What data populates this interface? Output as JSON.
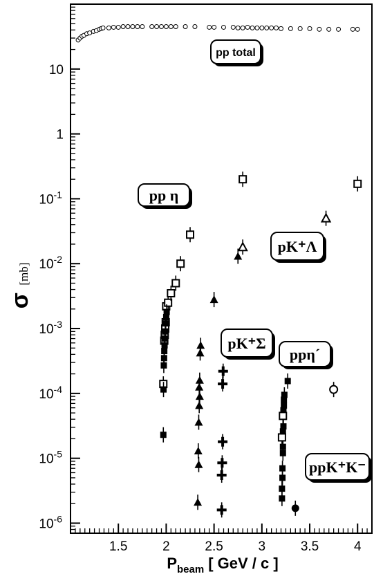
{
  "chart_data": {
    "type": "scatter",
    "xlabel": "P",
    "xlabel_sub": "beam",
    "xlabel_unit": "[ GeV / c ]",
    "ylabel": "σ",
    "ylabel_unit": "[mb]",
    "xlim": [
      1.0,
      4.15
    ],
    "ylim": [
      7e-07,
      100
    ],
    "yscale": "log",
    "x_ticks": [
      "1.5",
      "2",
      "2.5",
      "3",
      "3.5",
      "4"
    ],
    "y_ticks": [
      {
        "base": "10",
        "exp": "-6"
      },
      {
        "base": "10",
        "exp": "-5"
      },
      {
        "base": "10",
        "exp": "-4"
      },
      {
        "base": "10",
        "exp": "-3"
      },
      {
        "base": "10",
        "exp": "-2"
      },
      {
        "base": "10",
        "exp": "-1"
      },
      {
        "base": "1",
        "exp": ""
      },
      {
        "base": "10",
        "exp": ""
      }
    ],
    "series": [
      {
        "name": "pp total",
        "marker": "small-open-circle",
        "points": [
          [
            1.08,
            28
          ],
          [
            1.1,
            30
          ],
          [
            1.12,
            32
          ],
          [
            1.14,
            33
          ],
          [
            1.17,
            35
          ],
          [
            1.2,
            36
          ],
          [
            1.24,
            38
          ],
          [
            1.27,
            39
          ],
          [
            1.3,
            41
          ],
          [
            1.32,
            42
          ],
          [
            1.34,
            43
          ],
          [
            1.4,
            43
          ],
          [
            1.45,
            44
          ],
          [
            1.5,
            44
          ],
          [
            1.55,
            45
          ],
          [
            1.6,
            45
          ],
          [
            1.65,
            45
          ],
          [
            1.7,
            45
          ],
          [
            1.75,
            45
          ],
          [
            1.85,
            45
          ],
          [
            1.9,
            45
          ],
          [
            1.95,
            45
          ],
          [
            2.0,
            45
          ],
          [
            2.05,
            45
          ],
          [
            2.1,
            45
          ],
          [
            2.2,
            45
          ],
          [
            2.3,
            45
          ],
          [
            2.45,
            44
          ],
          [
            2.5,
            44
          ],
          [
            2.6,
            44
          ],
          [
            2.7,
            44
          ],
          [
            2.75,
            43
          ],
          [
            2.8,
            43
          ],
          [
            2.85,
            44
          ],
          [
            2.9,
            43
          ],
          [
            2.95,
            43
          ],
          [
            3.0,
            43
          ],
          [
            3.05,
            43
          ],
          [
            3.1,
            43
          ],
          [
            3.15,
            43
          ],
          [
            3.2,
            42
          ],
          [
            3.3,
            42
          ],
          [
            3.4,
            42
          ],
          [
            3.5,
            42
          ],
          [
            3.6,
            41
          ],
          [
            3.7,
            41
          ],
          [
            3.8,
            41
          ],
          [
            3.95,
            41
          ],
          [
            4.0,
            41
          ]
        ]
      },
      {
        "name": "pp η",
        "marker": "open-square",
        "points": [
          [
            1.97,
            0.00014
          ],
          [
            1.98,
            0.00065
          ],
          [
            1.985,
            0.0008
          ],
          [
            1.99,
            0.001
          ],
          [
            1.995,
            0.00125
          ],
          [
            2.0,
            0.0022
          ],
          [
            2.02,
            0.0025
          ],
          [
            2.05,
            0.0035
          ],
          [
            2.1,
            0.005
          ],
          [
            2.15,
            0.01
          ],
          [
            2.25,
            0.028
          ],
          [
            2.8,
            0.2
          ],
          [
            4.0,
            0.17
          ]
        ]
      },
      {
        "name": "pK⁺Λ",
        "marker": "open-triangle",
        "points": [
          [
            2.8,
            0.018
          ],
          [
            3.67,
            0.05
          ]
        ]
      },
      {
        "name": "pK⁺Λ",
        "marker": "filled-triangle",
        "points": [
          [
            2.5,
            0.0028
          ],
          [
            2.75,
            0.013
          ]
        ]
      },
      {
        "name": "pK⁺Σ",
        "marker": "filled-triangle",
        "points": [
          [
            2.33,
            2.1e-06
          ],
          [
            2.34,
            8e-06
          ],
          [
            2.335,
            1.3e-05
          ],
          [
            2.34,
            3.6e-05
          ],
          [
            2.345,
            6.5e-05
          ],
          [
            2.35,
            9e-05
          ],
          [
            2.345,
            0.000125
          ],
          [
            2.35,
            0.00016
          ],
          [
            2.355,
            0.00042
          ],
          [
            2.36,
            0.00055
          ]
        ]
      },
      {
        "name": "pK⁺Σ",
        "marker": "plus",
        "points": [
          [
            2.58,
            1.6e-06
          ],
          [
            2.58,
            5.5e-06
          ],
          [
            2.585,
            8.5e-06
          ],
          [
            2.59,
            1.8e-05
          ],
          [
            2.59,
            0.00014
          ],
          [
            2.595,
            0.00022
          ]
        ]
      },
      {
        "name": "pp η",
        "marker": "filled-square",
        "points": [
          [
            1.97,
            2.3e-05
          ],
          [
            1.972,
            0.000115
          ],
          [
            1.975,
            0.00027
          ],
          [
            1.978,
            0.00035
          ],
          [
            1.98,
            0.00045
          ],
          [
            1.983,
            0.00055
          ],
          [
            1.985,
            0.0007
          ],
          [
            1.99,
            0.0009
          ],
          [
            1.995,
            0.0012
          ],
          [
            2.0,
            0.0015
          ],
          [
            2.005,
            0.0018
          ]
        ]
      },
      {
        "name": "ppη′",
        "marker": "filled-square",
        "points": [
          [
            3.21,
            2.4e-06
          ],
          [
            3.21,
            3.4e-06
          ],
          [
            3.215,
            5e-06
          ],
          [
            3.215,
            7e-06
          ],
          [
            3.22,
            1.2e-05
          ],
          [
            3.22,
            1.5e-05
          ],
          [
            3.22,
            2.6e-05
          ],
          [
            3.225,
            3.1e-05
          ],
          [
            3.225,
            5.5e-05
          ],
          [
            3.23,
            6.5e-05
          ],
          [
            3.23,
            8e-05
          ],
          [
            3.235,
            9.5e-05
          ],
          [
            3.27,
            0.000155
          ]
        ]
      },
      {
        "name": "ppη′",
        "marker": "open-square",
        "points": [
          [
            3.21,
            2.1e-05
          ],
          [
            3.22,
            4.5e-05
          ]
        ]
      },
      {
        "name": "ppη′",
        "marker": "open-circle",
        "points": [
          [
            3.75,
            0.000115
          ]
        ]
      },
      {
        "name": "ppK⁺K⁻",
        "marker": "filled-circle",
        "points": [
          [
            3.35,
            1.7e-06
          ]
        ]
      }
    ],
    "labels": [
      {
        "text": "pp total",
        "style": "sans"
      },
      {
        "text": "pp η",
        "style": "serif"
      },
      {
        "text": "pK⁺Λ",
        "style": "serif"
      },
      {
        "text": "pK⁺Σ",
        "style": "serif"
      },
      {
        "text": "ppη´",
        "style": "serif"
      },
      {
        "text": "ppK⁺K⁻",
        "style": "serif"
      }
    ]
  }
}
